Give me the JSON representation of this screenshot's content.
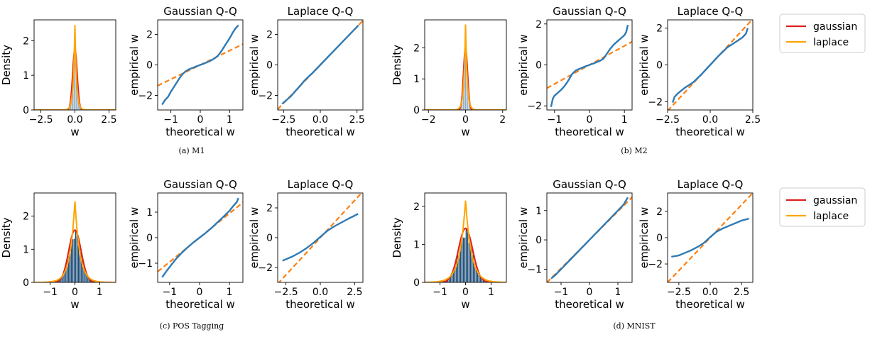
{
  "chart_data": [
    {
      "group": "M1",
      "caption": "(a) M1",
      "panels": [
        {
          "type": "area",
          "title": "",
          "xlabel": "w",
          "ylabel": "Density",
          "xlim": [
            -3.0,
            3.0
          ],
          "ylim": [
            0,
            2.6
          ],
          "xticks": [
            -2.5,
            0.0,
            2.5
          ],
          "xtick_labels": [
            "−2.5",
            "0.0",
            "2.5"
          ],
          "yticks": [
            0,
            1,
            2
          ],
          "ytick_labels": [
            "0",
            "1",
            "2"
          ],
          "hist_peak": 1.72,
          "hist_sigma": 0.16,
          "hist_range": [
            -0.7,
            0.7
          ],
          "series": [
            {
              "name": "gaussian",
              "kind": "gaussian",
              "peak": 1.75,
              "scale": 0.165,
              "color": "#e01e1e"
            },
            {
              "name": "laplace",
              "kind": "laplace",
              "peak": 2.45,
              "scale": 0.12,
              "color": "#ffa500"
            }
          ]
        },
        {
          "type": "line",
          "title": "Gaussian Q-Q",
          "xlabel": "theoretical w",
          "ylabel": "empirical w",
          "xlim": [
            -1.45,
            1.45
          ],
          "ylim": [
            -2.95,
            2.95
          ],
          "xticks": [
            -1,
            0,
            1
          ],
          "xtick_labels": [
            "−1",
            "0",
            "1"
          ],
          "yticks": [
            -2,
            0,
            2
          ],
          "ytick_labels": [
            "−2",
            "0",
            "2"
          ],
          "reference_line": {
            "slope": 0.94,
            "intercept": 0
          },
          "series": [
            {
              "name": "",
              "x": [
                -1.3,
                -1.2,
                -1.1,
                -1.0,
                -0.9,
                -0.8,
                -0.7,
                -0.6,
                -0.5,
                -0.4,
                -0.3,
                -0.2,
                -0.1,
                0.0,
                0.1,
                0.2,
                0.3,
                0.4,
                0.5,
                0.6,
                0.7,
                0.8,
                0.9,
                1.0,
                1.1,
                1.2,
                1.3
              ],
              "y": [
                -2.6,
                -2.3,
                -2.1,
                -1.75,
                -1.45,
                -1.15,
                -0.85,
                -0.6,
                -0.42,
                -0.3,
                -0.22,
                -0.15,
                -0.07,
                0.0,
                0.07,
                0.15,
                0.23,
                0.33,
                0.45,
                0.6,
                0.85,
                1.15,
                1.45,
                1.75,
                2.1,
                2.4,
                2.6
              ]
            }
          ]
        },
        {
          "type": "line",
          "title": "Laplace Q-Q",
          "xlabel": "theoretical w",
          "ylabel": "empirical w",
          "xlim": [
            -2.9,
            2.9
          ],
          "ylim": [
            -2.95,
            2.95
          ],
          "xticks": [
            -2.5,
            0.0,
            2.5
          ],
          "xtick_labels": [
            "−2.5",
            "0.0",
            "2.5"
          ],
          "yticks": [
            -2,
            0,
            2
          ],
          "ytick_labels": [
            "−2",
            "0",
            "2"
          ],
          "reference_line": {
            "slope": 1.0,
            "intercept": 0
          },
          "series": [
            {
              "name": "",
              "x": [
                -2.6,
                -2.0,
                -1.5,
                -1.0,
                -0.5,
                0.0,
                0.5,
                1.0,
                1.5,
                2.0,
                2.6
              ],
              "y": [
                -2.55,
                -2.05,
                -1.5,
                -0.95,
                -0.5,
                0.0,
                0.5,
                1.0,
                1.5,
                2.0,
                2.6
              ]
            }
          ]
        }
      ]
    },
    {
      "group": "M2",
      "caption": "(b) M2",
      "panels": [
        {
          "type": "area",
          "title": "",
          "xlabel": "w",
          "ylabel": "Density",
          "xlim": [
            -2.2,
            2.2
          ],
          "ylim": [
            0,
            2.9
          ],
          "xticks": [
            -2,
            0,
            2
          ],
          "xtick_labels": [
            "−2",
            "0",
            "2"
          ],
          "yticks": [
            0,
            1,
            2
          ],
          "ytick_labels": [
            "0",
            "1",
            "2"
          ],
          "hist_peak": 2.0,
          "hist_sigma": 0.1,
          "hist_range": [
            -0.5,
            0.5
          ],
          "series": [
            {
              "name": "gaussian",
              "kind": "gaussian",
              "peak": 2.0,
              "scale": 0.11,
              "color": "#e01e1e"
            },
            {
              "name": "laplace",
              "kind": "laplace",
              "peak": 2.75,
              "scale": 0.09,
              "color": "#ffa500"
            }
          ]
        },
        {
          "type": "line",
          "title": "Gaussian Q-Q",
          "xlabel": "theoretical w",
          "ylabel": "empirical w",
          "xlim": [
            -1.22,
            1.22
          ],
          "ylim": [
            -2.2,
            2.2
          ],
          "xticks": [
            -1,
            0,
            1
          ],
          "xtick_labels": [
            "−1",
            "0",
            "1"
          ],
          "yticks": [
            -2,
            0,
            2
          ],
          "ytick_labels": [
            "−2",
            "0",
            "2"
          ],
          "reference_line": {
            "slope": 0.93,
            "intercept": 0
          },
          "series": [
            {
              "name": "",
              "x": [
                -1.1,
                -1.05,
                -1.0,
                -0.9,
                -0.8,
                -0.7,
                -0.6,
                -0.5,
                -0.4,
                -0.3,
                -0.2,
                -0.1,
                0.0,
                0.1,
                0.2,
                0.3,
                0.4,
                0.5,
                0.6,
                0.7,
                0.8,
                0.9,
                1.0,
                1.05,
                1.1
              ],
              "y": [
                -2.05,
                -1.65,
                -1.5,
                -1.35,
                -1.2,
                -1.0,
                -0.75,
                -0.45,
                -0.28,
                -0.2,
                -0.13,
                -0.06,
                0.0,
                0.06,
                0.13,
                0.2,
                0.3,
                0.55,
                0.8,
                1.0,
                1.15,
                1.3,
                1.45,
                1.6,
                1.95
              ]
            }
          ]
        },
        {
          "type": "line",
          "title": "Laplace Q-Q",
          "xlabel": "theoretical w",
          "ylabel": "empirical w",
          "xlim": [
            -2.5,
            2.5
          ],
          "ylim": [
            -2.45,
            2.45
          ],
          "xticks": [
            -2.5,
            0.0,
            2.5
          ],
          "xtick_labels": [
            "−2.5",
            "0.0",
            "2.5"
          ],
          "yticks": [
            -2,
            0,
            2
          ],
          "ytick_labels": [
            "−2",
            "0",
            "2"
          ],
          "reference_line": {
            "slope": 1.0,
            "intercept": 0
          },
          "series": [
            {
              "name": "",
              "x": [
                -2.2,
                -2.1,
                -1.9,
                -1.5,
                -1.0,
                -0.5,
                0.0,
                0.5,
                1.0,
                1.5,
                1.9,
                2.1,
                2.2
              ],
              "y": [
                -2.05,
                -1.75,
                -1.55,
                -1.25,
                -0.95,
                -0.5,
                0.0,
                0.5,
                0.95,
                1.25,
                1.5,
                1.7,
                2.0
              ]
            }
          ]
        }
      ]
    },
    {
      "group": "POS",
      "caption": "(c) POS Tagging",
      "panels": [
        {
          "type": "area",
          "title": "",
          "xlabel": "w",
          "ylabel": "Density",
          "xlim": [
            -1.65,
            1.65
          ],
          "ylim": [
            0,
            2.7
          ],
          "xticks": [
            -1,
            0,
            1
          ],
          "xtick_labels": [
            "−1",
            "0",
            "1"
          ],
          "yticks": [
            0,
            1,
            2
          ],
          "ytick_labels": [
            "0",
            "1",
            "2"
          ],
          "hist_peak": 1.62,
          "hist_sigma": 0.25,
          "hist_range": [
            -1.0,
            1.0
          ],
          "series": [
            {
              "name": "gaussian",
              "kind": "gaussian",
              "peak": 1.58,
              "scale": 0.25,
              "color": "#e01e1e"
            },
            {
              "name": "laplace",
              "kind": "laplace",
              "peak": 2.45,
              "scale": 0.2,
              "color": "#ffa500"
            }
          ]
        },
        {
          "type": "line",
          "title": "Gaussian Q-Q",
          "xlabel": "theoretical w",
          "ylabel": "empirical w",
          "xlim": [
            -1.4,
            1.45
          ],
          "ylim": [
            -1.75,
            1.75
          ],
          "xticks": [
            -1,
            0,
            1
          ],
          "xtick_labels": [
            "−1",
            "0",
            "1"
          ],
          "yticks": [
            -1,
            0,
            1
          ],
          "ytick_labels": [
            "−1",
            "0",
            "1"
          ],
          "reference_line": {
            "slope": 0.95,
            "intercept": 0
          },
          "series": [
            {
              "name": "",
              "x": [
                -1.25,
                -1.1,
                -1.0,
                -0.8,
                -0.6,
                -0.4,
                -0.2,
                0.0,
                0.2,
                0.4,
                0.6,
                0.8,
                1.0,
                1.1,
                1.25,
                1.3
              ],
              "y": [
                -1.55,
                -1.3,
                -1.15,
                -0.85,
                -0.6,
                -0.38,
                -0.18,
                0.0,
                0.18,
                0.38,
                0.6,
                0.82,
                1.05,
                1.2,
                1.4,
                1.55
              ]
            }
          ]
        },
        {
          "type": "line",
          "title": "Laplace Q-Q",
          "xlabel": "theoretical w",
          "ylabel": "empirical w",
          "xlim": [
            -3.1,
            3.1
          ],
          "ylim": [
            -3.0,
            3.0
          ],
          "xticks": [
            -2.5,
            0.0,
            2.5
          ],
          "xtick_labels": [
            "−2.5",
            "0.0",
            "2.5"
          ],
          "yticks": [
            -2,
            0,
            2
          ],
          "ytick_labels": [
            "−2",
            "0",
            "2"
          ],
          "reference_line": {
            "slope": 1.0,
            "intercept": 0
          },
          "series": [
            {
              "name": "",
              "x": [
                -2.75,
                -2.0,
                -1.5,
                -1.0,
                -0.5,
                0.0,
                0.5,
                1.0,
                1.5,
                2.0,
                2.75
              ],
              "y": [
                -1.55,
                -1.25,
                -1.0,
                -0.7,
                -0.35,
                0.05,
                0.45,
                0.75,
                1.0,
                1.25,
                1.6
              ]
            }
          ]
        }
      ]
    },
    {
      "group": "MNIST",
      "caption": "(d) MNIST",
      "panels": [
        {
          "type": "area",
          "title": "",
          "xlabel": "w",
          "ylabel": "Density",
          "xlim": [
            -1.6,
            1.6
          ],
          "ylim": [
            0,
            2.35
          ],
          "xticks": [
            -1,
            0,
            1
          ],
          "xtick_labels": [
            "−1",
            "0",
            "1"
          ],
          "yticks": [
            0,
            1,
            2
          ],
          "ytick_labels": [
            "0",
            "1",
            "2"
          ],
          "hist_peak": 1.45,
          "hist_sigma": 0.28,
          "hist_range": [
            -1.0,
            1.0
          ],
          "series": [
            {
              "name": "gaussian",
              "kind": "gaussian",
              "peak": 1.42,
              "scale": 0.28,
              "color": "#e01e1e"
            },
            {
              "name": "laplace",
              "kind": "laplace",
              "peak": 2.15,
              "scale": 0.23,
              "color": "#ffa500"
            }
          ]
        },
        {
          "type": "line",
          "title": "Gaussian Q-Q",
          "xlabel": "theoretical w",
          "ylabel": "empirical w",
          "xlim": [
            -1.5,
            1.5
          ],
          "ylim": [
            -1.45,
            1.6
          ],
          "xticks": [
            -1,
            0,
            1
          ],
          "xtick_labels": [
            "−1",
            "0",
            "1"
          ],
          "yticks": [
            -1,
            0,
            1
          ],
          "ytick_labels": [
            "−1",
            "0",
            "1"
          ],
          "reference_line": {
            "slope": 0.97,
            "intercept": 0
          },
          "series": [
            {
              "name": "",
              "x": [
                -1.35,
                -1.2,
                -1.0,
                -0.5,
                0.0,
                0.5,
                1.0,
                1.2,
                1.35
              ],
              "y": [
                -1.32,
                -1.2,
                -1.0,
                -0.5,
                0.0,
                0.5,
                1.0,
                1.2,
                1.45
              ]
            }
          ]
        },
        {
          "type": "line",
          "title": "Laplace Q-Q",
          "xlabel": "theoretical w",
          "ylabel": "empirical w",
          "xlim": [
            -3.4,
            3.4
          ],
          "ylim": [
            -3.4,
            3.4
          ],
          "xticks": [
            -2.5,
            0.0,
            2.5
          ],
          "xtick_labels": [
            "−2.5",
            "0.0",
            "2.5"
          ],
          "yticks": [
            -2,
            0,
            2
          ],
          "ytick_labels": [
            "−2",
            "0",
            "2"
          ],
          "reference_line": {
            "slope": 1.0,
            "intercept": 0
          },
          "series": [
            {
              "name": "",
              "x": [
                -3.1,
                -2.5,
                -2.0,
                -1.5,
                -1.0,
                -0.5,
                0.0,
                0.5,
                1.0,
                1.5,
                2.0,
                2.5,
                3.1
              ],
              "y": [
                -1.45,
                -1.35,
                -1.15,
                -0.95,
                -0.7,
                -0.4,
                0.05,
                0.45,
                0.7,
                0.9,
                1.1,
                1.3,
                1.45
              ]
            }
          ]
        }
      ]
    }
  ],
  "legends": [
    {
      "entries": [
        {
          "label": "gaussian",
          "color": "#e01e1e"
        },
        {
          "label": "laplace",
          "color": "#ffa500"
        }
      ]
    },
    {
      "entries": [
        {
          "label": "gaussian",
          "color": "#e01e1e"
        },
        {
          "label": "laplace",
          "color": "#ffa500"
        }
      ]
    }
  ],
  "colors": {
    "qq_line": "#2e7ab5",
    "reference_line": "#ff7f0e",
    "hist_fill": "#1f4e79",
    "hist_edge": "#ffffff"
  }
}
